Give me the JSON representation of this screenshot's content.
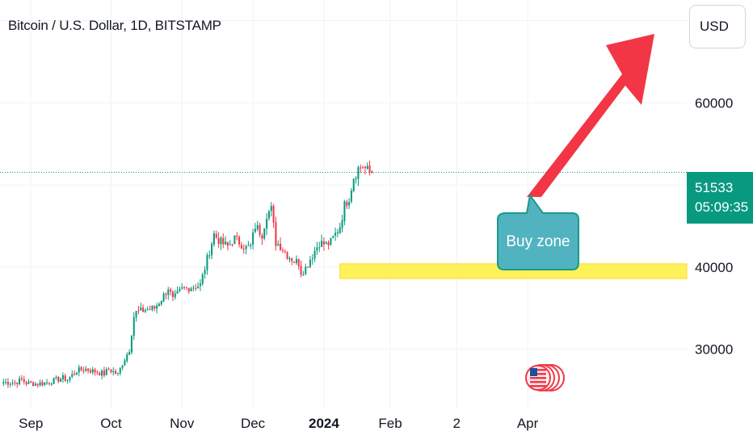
{
  "header": {
    "title": "Bitcoin / U.S. Dollar, 1D, BITSTAMP"
  },
  "currency_button": {
    "label": "USD"
  },
  "price_tag": {
    "price": "51533",
    "countdown": "05:09:35"
  },
  "annotation": {
    "text": "Buy zone"
  },
  "colors": {
    "up": "#089981",
    "down": "#f23645",
    "arrow": "#f23645",
    "buy_zone": "#fff15a",
    "callout": "#52b3c0",
    "callout_border": "#1a9a8a"
  },
  "icons": {
    "flag": "us-flag-icon"
  },
  "chart_data": {
    "type": "candlestick",
    "title": "Bitcoin / U.S. Dollar, 1D, BITSTAMP",
    "y_ticks": [
      30000,
      40000,
      60000
    ],
    "x_ticks": [
      "Sep",
      "Oct",
      "Nov",
      "Dec",
      "2024",
      "Feb",
      "2",
      "Apr"
    ],
    "x_tick_bold": "2024",
    "ylim": [
      22800,
      72500
    ],
    "last_price": 51533,
    "buy_zone": [
      38600,
      40400
    ],
    "close_path": [
      [
        0,
        26000
      ],
      [
        5,
        25950
      ],
      [
        8,
        26300
      ],
      [
        10,
        25900
      ],
      [
        14,
        25800
      ],
      [
        18,
        25900
      ],
      [
        22,
        26200
      ],
      [
        26,
        26500
      ],
      [
        28,
        26300
      ],
      [
        32,
        27400
      ],
      [
        36,
        27600
      ],
      [
        40,
        27300
      ],
      [
        44,
        27000
      ],
      [
        46,
        27600
      ],
      [
        50,
        26900
      ],
      [
        52,
        28300
      ],
      [
        55,
        30000
      ],
      [
        57,
        34000
      ],
      [
        58,
        34500
      ],
      [
        62,
        34800
      ],
      [
        66,
        35000
      ],
      [
        70,
        36500
      ],
      [
        72,
        37500
      ],
      [
        74,
        36000
      ],
      [
        78,
        37300
      ],
      [
        82,
        37600
      ],
      [
        86,
        37800
      ],
      [
        90,
        42000
      ],
      [
        92,
        44000
      ],
      [
        95,
        43000
      ],
      [
        98,
        42500
      ],
      [
        101,
        43500
      ],
      [
        104,
        42800
      ],
      [
        106,
        42300
      ],
      [
        108,
        42500
      ],
      [
        110,
        45000
      ],
      [
        113,
        44000
      ],
      [
        115,
        46500
      ],
      [
        117,
        47000
      ],
      [
        119,
        43000
      ],
      [
        121,
        42600
      ],
      [
        124,
        41500
      ],
      [
        127,
        40800
      ],
      [
        129,
        40500
      ],
      [
        130,
        39400
      ],
      [
        132,
        39900
      ],
      [
        134,
        41000
      ],
      [
        136,
        42000
      ],
      [
        138,
        43000
      ],
      [
        141,
        42700
      ],
      [
        143,
        43000
      ],
      [
        145,
        44000
      ],
      [
        147,
        45000
      ],
      [
        149,
        47500
      ],
      [
        151,
        48500
      ],
      [
        153,
        51000
      ],
      [
        155,
        52000
      ],
      [
        157,
        52300
      ],
      [
        158,
        52000
      ],
      [
        160,
        51500
      ],
      [
        161,
        51533
      ]
    ]
  }
}
